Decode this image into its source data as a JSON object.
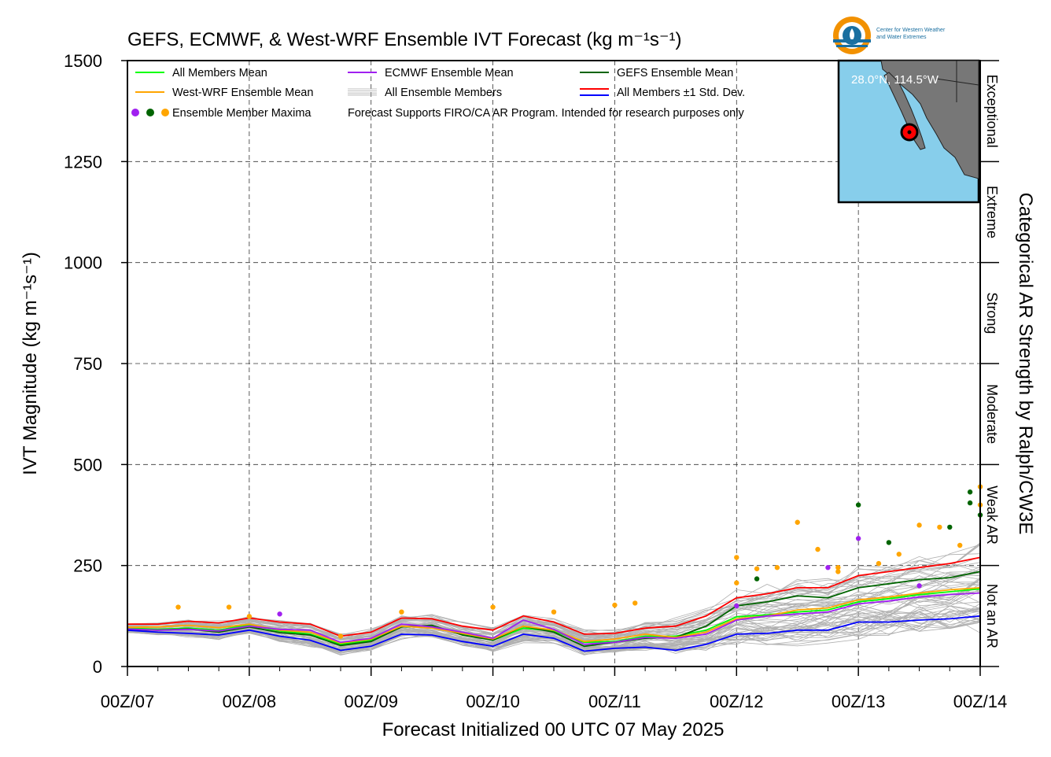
{
  "chart_data": {
    "type": "line",
    "title": "GEFS, ECMWF, & West-WRF Ensemble IVT Forecast (kg m⁻¹s⁻¹)",
    "xlabel": "Forecast Initialized 00 UTC 07 May 2025",
    "ylabel": "IVT Magnitude (kg m⁻¹s⁻¹)",
    "right_label": "Categorical AR Strength by Ralph/CW3E",
    "ylim": [
      0,
      1500
    ],
    "xlim": [
      0,
      168
    ],
    "y_ticks": [
      "0",
      "250",
      "500",
      "750",
      "1000",
      "1250",
      "1500"
    ],
    "y_tick_values": [
      0,
      250,
      500,
      750,
      1000,
      1250,
      1500
    ],
    "x_tick_labels": [
      "00Z/07",
      "00Z/08",
      "00Z/09",
      "00Z/10",
      "00Z/11",
      "00Z/12",
      "00Z/13",
      "00Z/14"
    ],
    "x_tick_hours": [
      0,
      24,
      48,
      72,
      96,
      120,
      144,
      168
    ],
    "categories_ar": [
      {
        "label": "Not an AR",
        "range": [
          0,
          250
        ]
      },
      {
        "label": "Weak AR",
        "range": [
          250,
          500
        ]
      },
      {
        "label": "Moderate",
        "range": [
          500,
          750
        ]
      },
      {
        "label": "Strong",
        "range": [
          750,
          1000
        ]
      },
      {
        "label": "Extreme",
        "range": [
          1000,
          1250
        ]
      },
      {
        "label": "Exceptional",
        "range": [
          1250,
          1500
        ]
      }
    ],
    "grid": true,
    "legend_placement": "top-left",
    "x_hours": [
      0,
      6,
      12,
      18,
      24,
      30,
      36,
      42,
      48,
      54,
      60,
      66,
      72,
      78,
      84,
      90,
      96,
      102,
      108,
      114,
      120,
      126,
      132,
      138,
      144,
      150,
      156,
      162,
      168
    ],
    "series": [
      {
        "name": "All Members Mean",
        "color": "#00ff00",
        "values": [
          95,
          92,
          95,
          90,
          103,
          88,
          80,
          55,
          65,
          98,
          100,
          80,
          65,
          95,
          88,
          60,
          62,
          75,
          75,
          90,
          123,
          128,
          135,
          140,
          160,
          168,
          178,
          185,
          192
        ]
      },
      {
        "name": "West-WRF Ensemble Mean",
        "color": "#ffa500",
        "values": [
          97,
          98,
          102,
          96,
          105,
          90,
          85,
          58,
          68,
          100,
          95,
          82,
          68,
          100,
          90,
          62,
          68,
          80,
          72,
          85,
          118,
          125,
          140,
          145,
          165,
          172,
          182,
          190,
          195
        ]
      },
      {
        "name": "ECMWF Ensemble Mean",
        "color": "#a020f0",
        "values": [
          93,
          90,
          92,
          88,
          100,
          92,
          90,
          60,
          70,
          105,
          98,
          85,
          70,
          115,
          92,
          55,
          60,
          72,
          70,
          80,
          115,
          125,
          130,
          135,
          155,
          162,
          172,
          178,
          182
        ]
      },
      {
        "name": "GEFS Ensemble Mean",
        "color": "#006400",
        "values": [
          92,
          90,
          93,
          85,
          98,
          84,
          78,
          52,
          62,
          98,
          102,
          78,
          65,
          100,
          85,
          50,
          60,
          70,
          72,
          100,
          150,
          160,
          175,
          170,
          195,
          205,
          215,
          220,
          235
        ]
      },
      {
        "name": "All Members ±1 Std. Dev.",
        "color": "#ff0000",
        "values": [
          105,
          105,
          112,
          108,
          120,
          110,
          105,
          75,
          85,
          120,
          118,
          100,
          90,
          125,
          110,
          80,
          82,
          95,
          100,
          125,
          170,
          180,
          195,
          195,
          225,
          235,
          245,
          255,
          270
        ]
      },
      {
        "name": "All Members ±1 Std. Dev. (lower)",
        "color": "#0000ff",
        "values": [
          90,
          85,
          82,
          78,
          90,
          75,
          65,
          40,
          50,
          80,
          78,
          62,
          50,
          80,
          70,
          38,
          45,
          48,
          40,
          55,
          80,
          82,
          90,
          90,
          110,
          110,
          115,
          118,
          125
        ]
      }
    ],
    "maxima": [
      {
        "color": "#ffa500",
        "points": [
          [
            10,
            147
          ],
          [
            20,
            147
          ],
          [
            24,
            124
          ],
          [
            42,
            75
          ],
          [
            54,
            135
          ],
          [
            72,
            147
          ],
          [
            84,
            135
          ],
          [
            96,
            152
          ],
          [
            100,
            157
          ],
          [
            120,
            270
          ],
          [
            120,
            207
          ],
          [
            124,
            242
          ],
          [
            128,
            245
          ],
          [
            132,
            357
          ],
          [
            136,
            290
          ],
          [
            140,
            235
          ],
          [
            140,
            245
          ],
          [
            148,
            255
          ],
          [
            152,
            278
          ],
          [
            156,
            350
          ],
          [
            160,
            345
          ],
          [
            164,
            300
          ],
          [
            168,
            445
          ],
          [
            168,
            400
          ]
        ]
      },
      {
        "color": "#006400",
        "points": [
          [
            124,
            217
          ],
          [
            144,
            400
          ],
          [
            150,
            307
          ],
          [
            162,
            345
          ],
          [
            166,
            405
          ],
          [
            168,
            375
          ],
          [
            166,
            432
          ]
        ]
      },
      {
        "color": "#a020f0",
        "points": [
          [
            30,
            130
          ],
          [
            144,
            317
          ],
          [
            138,
            245
          ],
          [
            120,
            150
          ],
          [
            156,
            200
          ]
        ]
      }
    ],
    "legend": [
      {
        "label": "All Members Mean",
        "color": "#00ff00",
        "kind": "line"
      },
      {
        "label": "ECMWF Ensemble Mean",
        "color": "#a020f0",
        "kind": "line"
      },
      {
        "label": "GEFS Ensemble Mean",
        "color": "#006400",
        "kind": "line"
      },
      {
        "label": "West-WRF Ensemble Mean",
        "color": "#ffa500",
        "kind": "line"
      },
      {
        "label": "All Ensemble Members",
        "color": "#aaaaaa",
        "kind": "multiline"
      },
      {
        "label": "All Members ±1 Std. Dev.",
        "color": "#ff0000",
        "color2": "#0000ff",
        "kind": "dual"
      },
      {
        "label": "Ensemble Member Maxima",
        "colors": [
          "#a020f0",
          "#006400",
          "#ffa500"
        ],
        "kind": "dots"
      }
    ],
    "note": "Forecast Supports FIRO/CA AR Program. Intended for research purposes only",
    "map_label": "28.0°N, 114.5°W",
    "logo_text_1": "Center for Western Weather",
    "logo_text_2": "and Water Extremes",
    "colors": {
      "ensemble_member": "#b0b0b0",
      "ocean": "#87ceeb",
      "land": "#777777",
      "marker": "#ff0000"
    }
  }
}
